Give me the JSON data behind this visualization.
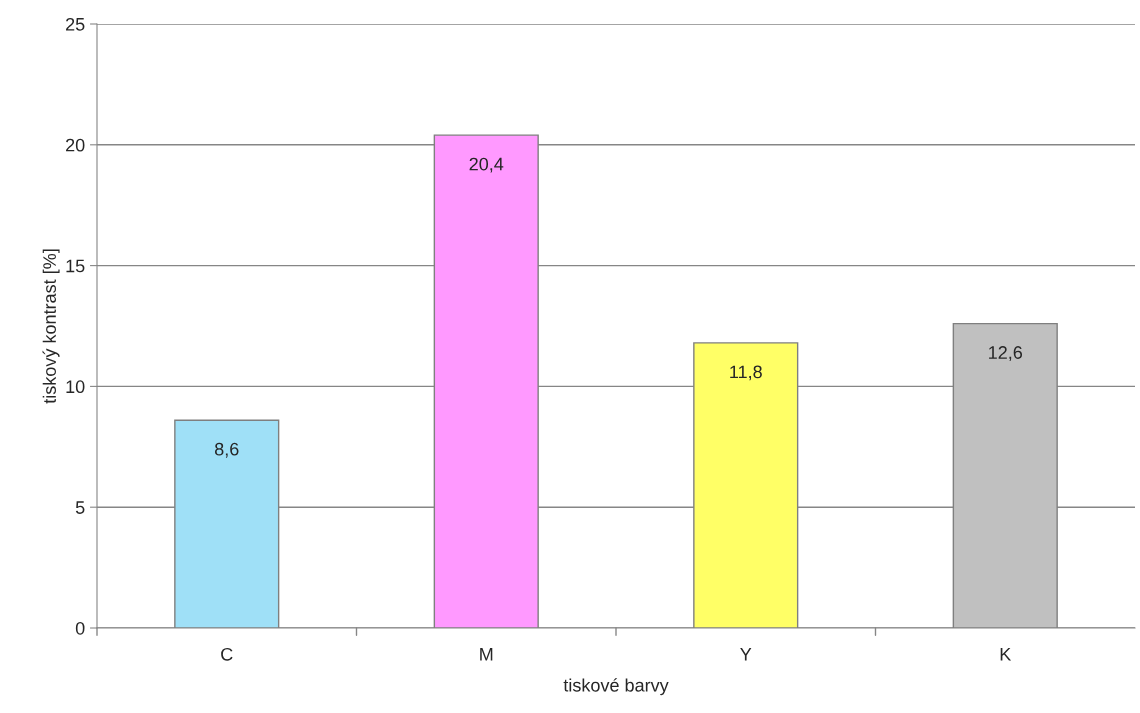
{
  "chart_data": {
    "type": "bar",
    "xlabel": "tiskové barvy",
    "ylabel": "tiskový kontrast [%]",
    "categories": [
      "C",
      "M",
      "Y",
      "K"
    ],
    "values": [
      8.6,
      20.4,
      11.8,
      12.6
    ],
    "value_labels": [
      "8,6",
      "20,4",
      "11,8",
      "12,6"
    ],
    "colors": [
      "#9fe0f7",
      "#ff99ff",
      "#ffff66",
      "#c0c0c0"
    ],
    "ylim": [
      0,
      25
    ],
    "yticks": [
      0,
      5,
      10,
      15,
      20,
      25
    ],
    "grid": "y"
  }
}
